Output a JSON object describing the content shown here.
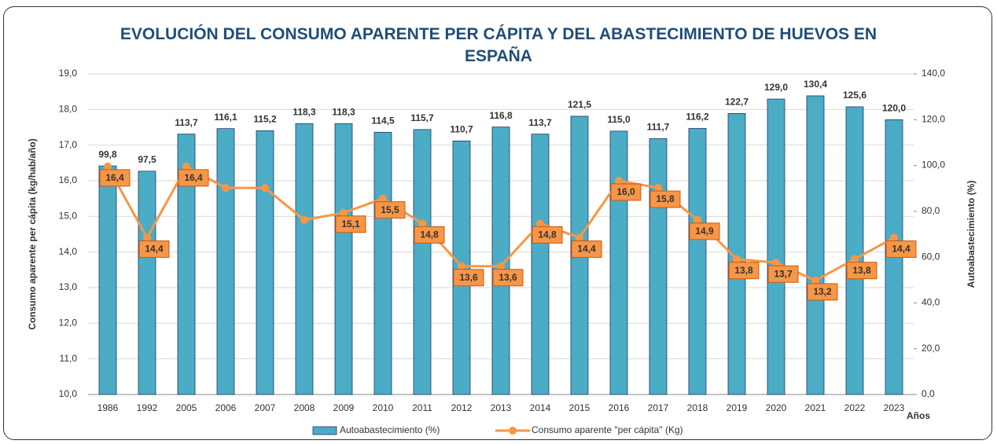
{
  "chart_data": {
    "type": "bar-line",
    "title": "EVOLUCIÓN DEL CONSUMO APARENTE PER CÁPITA Y DEL ABASTECIMIENTO DE HUEVOS EN ESPAÑA",
    "x_label": "Años",
    "y_label": "Consumo aparente per cápita (kg/hab/año)",
    "y2_label": "Autoabastecimiento (%)",
    "categories": [
      "1986",
      "1992",
      "2005",
      "2006",
      "2007",
      "2008",
      "2009",
      "2010",
      "2011",
      "2012",
      "2013",
      "2014",
      "2015",
      "2016",
      "2017",
      "2018",
      "2019",
      "2020",
      "2021",
      "2022",
      "2023"
    ],
    "series": [
      {
        "name": "Autoabastecimiento (%)",
        "type": "bar",
        "axis": "y2",
        "color": "#4bacc6",
        "values": [
          99.8,
          97.5,
          113.7,
          116.1,
          115.2,
          118.3,
          118.3,
          114.5,
          115.7,
          110.7,
          116.8,
          113.7,
          121.5,
          115.0,
          111.7,
          116.2,
          122.7,
          129.0,
          130.4,
          125.6,
          120.0
        ],
        "value_labels": [
          "99,8",
          "97,5",
          "113,7",
          "116,1",
          "115,2",
          "118,3",
          "118,3",
          "114,5",
          "115,7",
          "110,7",
          "116,8",
          "113,7",
          "121,5",
          "115,0",
          "111,7",
          "116,2",
          "122,7",
          "129,0",
          "130,4",
          "125,6",
          "120,0"
        ]
      },
      {
        "name": "Consumo aparente \"per cápita\" (Kg)",
        "type": "line",
        "axis": "y",
        "color": "#f79646",
        "values": [
          16.4,
          14.4,
          16.4,
          15.8,
          15.8,
          14.9,
          15.1,
          15.5,
          14.8,
          13.6,
          13.6,
          14.8,
          14.4,
          16.0,
          15.8,
          14.9,
          13.8,
          13.7,
          13.2,
          13.8,
          14.4
        ],
        "value_labels": [
          "16,4",
          "14,4",
          "16,4",
          null,
          null,
          null,
          "15,1",
          "15,5",
          "14,8",
          "13,6",
          "13,6",
          "14,8",
          "14,4",
          "16,0",
          "15,8",
          "14,9",
          "13,8",
          "13,7",
          "13,2",
          "13,8",
          "14,4"
        ]
      }
    ],
    "ylim": [
      10,
      19
    ],
    "yticks": [
      {
        "value": 10,
        "label": "10,0"
      },
      {
        "value": 11,
        "label": "11,0"
      },
      {
        "value": 12,
        "label": "12,0"
      },
      {
        "value": 13,
        "label": "13,0"
      },
      {
        "value": 14,
        "label": "14,0"
      },
      {
        "value": 15,
        "label": "15,0"
      },
      {
        "value": 16,
        "label": "16,0"
      },
      {
        "value": 17,
        "label": "17,0"
      },
      {
        "value": 18,
        "label": "18,0"
      },
      {
        "value": 19,
        "label": "19,0"
      }
    ],
    "y2lim": [
      0,
      140
    ],
    "y2ticks": [
      {
        "value": 0,
        "label": "0,0"
      },
      {
        "value": 20,
        "label": "20,0"
      },
      {
        "value": 40,
        "label": "40,0"
      },
      {
        "value": 60,
        "label": "60,0"
      },
      {
        "value": 80,
        "label": "80,0"
      },
      {
        "value": 100,
        "label": "100,0"
      },
      {
        "value": 120,
        "label": "120,0"
      },
      {
        "value": 140,
        "label": "140,0"
      }
    ],
    "grid": true,
    "legend": "bottom"
  }
}
